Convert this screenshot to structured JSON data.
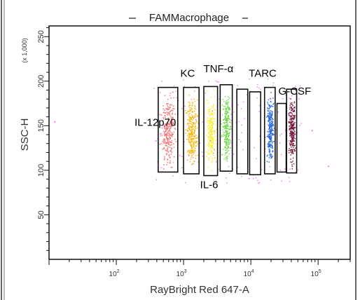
{
  "chart_data": {
    "type": "scatter",
    "title": "FAMMacrophage",
    "xlabel": "RayBright Red 647-A",
    "ylabel": "SSC-H",
    "y_multiplier": "(x 1,000)",
    "x_scale": "log",
    "xlim": [
      10,
      300000
    ],
    "ylim": [
      0,
      262
    ],
    "x_ticks": [
      {
        "value": 100,
        "base": "10",
        "exp": "2"
      },
      {
        "value": 1000,
        "base": "10",
        "exp": "3"
      },
      {
        "value": 10000,
        "base": "10",
        "exp": "4"
      },
      {
        "value": 100000,
        "base": "10",
        "exp": "5"
      }
    ],
    "y_ticks": [
      50,
      100,
      150,
      200,
      250
    ],
    "annotations": [
      {
        "text": "IL-12p70",
        "x": 380,
        "y": 150
      },
      {
        "text": "KC",
        "x": 1150,
        "y": 205
      },
      {
        "text": "TNF-α",
        "x": 3300,
        "y": 210
      },
      {
        "text": "IL-6",
        "x": 2400,
        "y": 80
      },
      {
        "text": "TARC",
        "x": 15000,
        "y": 205
      },
      {
        "text": "G-CSF",
        "x": 45000,
        "y": 185
      }
    ],
    "gates": [
      {
        "name": "IL-12p70",
        "x_range": [
          420,
          820
        ],
        "y_range": [
          98,
          193
        ],
        "color": "#f26b6b"
      },
      {
        "name": "KC",
        "x_range": [
          1000,
          1700
        ],
        "y_range": [
          96,
          193
        ],
        "color": "#f9b400"
      },
      {
        "name": "IL-6",
        "x_range": [
          2000,
          3200
        ],
        "y_range": [
          94,
          194
        ],
        "color": "#f7f03c"
      },
      {
        "name": "TNF-α",
        "x_range": [
          3500,
          5300
        ],
        "y_range": [
          99,
          196
        ],
        "color": "#6fd94a"
      },
      {
        "name": "",
        "x_range": [
          6200,
          9000
        ],
        "y_range": [
          96,
          191
        ],
        "color": "#ffffff"
      },
      {
        "name": "",
        "x_range": [
          9600,
          14000
        ],
        "y_range": [
          95,
          188
        ],
        "color": "#ffffff"
      },
      {
        "name": "TARC",
        "x_range": [
          16000,
          23000
        ],
        "y_range": [
          96,
          193
        ],
        "color": "#2468e0"
      },
      {
        "name": "",
        "x_range": [
          24500,
          33500
        ],
        "y_range": [
          98,
          175
        ],
        "color": "#ffffff"
      },
      {
        "name": "G-CSF",
        "x_range": [
          34000,
          48000
        ],
        "y_range": [
          97,
          191
        ],
        "color": "#7a1540"
      }
    ],
    "stray_events_color": "#d946d9",
    "colors": {
      "frame": "#111111",
      "background": "#ffffff"
    },
    "grid": false,
    "legend": "none"
  }
}
